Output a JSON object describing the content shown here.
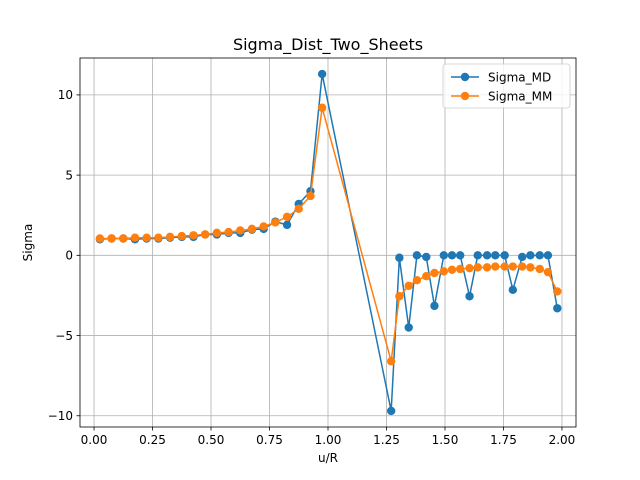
{
  "chart_data": {
    "type": "line",
    "title": "Sigma_Dist_Two_Sheets",
    "xlabel": "u/R",
    "ylabel": "Sigma",
    "xlim": [
      -0.06,
      2.06
    ],
    "ylim": [
      -10.7,
      12.3
    ],
    "xticks": [
      0.0,
      0.25,
      0.5,
      0.75,
      1.0,
      1.25,
      1.5,
      1.75,
      2.0
    ],
    "xtick_labels": [
      "0.00",
      "0.25",
      "0.50",
      "0.75",
      "1.00",
      "1.25",
      "1.50",
      "1.75",
      "2.00"
    ],
    "yticks": [
      -10,
      -5,
      0,
      5,
      10
    ],
    "ytick_labels": [
      "−10",
      "−5",
      "0",
      "5",
      "10"
    ],
    "grid": true,
    "legend_position": "top-right",
    "series": [
      {
        "name": "Sigma_MD",
        "color": "#1f77b4",
        "marker": "circle",
        "points": [
          [
            0.025,
            1.0
          ],
          [
            0.075,
            1.05
          ],
          [
            0.125,
            1.05
          ],
          [
            0.175,
            1.0
          ],
          [
            0.225,
            1.05
          ],
          [
            0.275,
            1.05
          ],
          [
            0.325,
            1.1
          ],
          [
            0.375,
            1.15
          ],
          [
            0.425,
            1.15
          ],
          [
            0.475,
            1.3
          ],
          [
            0.525,
            1.3
          ],
          [
            0.575,
            1.4
          ],
          [
            0.625,
            1.4
          ],
          [
            0.675,
            1.6
          ],
          [
            0.725,
            1.65
          ],
          [
            0.775,
            2.1
          ],
          [
            0.825,
            1.9
          ],
          [
            0.875,
            3.2
          ],
          [
            0.925,
            4.0
          ],
          [
            0.975,
            11.3
          ],
          [
            1.27,
            -9.7
          ],
          [
            1.305,
            -0.15
          ],
          [
            1.345,
            -4.5
          ],
          [
            1.38,
            0.0
          ],
          [
            1.42,
            -0.1
          ],
          [
            1.455,
            -3.15
          ],
          [
            1.495,
            0.0
          ],
          [
            1.53,
            0.0
          ],
          [
            1.565,
            0.0
          ],
          [
            1.605,
            -2.55
          ],
          [
            1.64,
            0.0
          ],
          [
            1.68,
            0.0
          ],
          [
            1.715,
            0.0
          ],
          [
            1.755,
            0.0
          ],
          [
            1.79,
            -2.15
          ],
          [
            1.83,
            -0.1
          ],
          [
            1.865,
            0.0
          ],
          [
            1.905,
            0.0
          ],
          [
            1.94,
            0.0
          ],
          [
            1.98,
            -3.3
          ]
        ]
      },
      {
        "name": "Sigma_MM",
        "color": "#ff7f0e",
        "marker": "circle",
        "points": [
          [
            0.025,
            1.05
          ],
          [
            0.075,
            1.05
          ],
          [
            0.125,
            1.05
          ],
          [
            0.175,
            1.1
          ],
          [
            0.225,
            1.1
          ],
          [
            0.275,
            1.1
          ],
          [
            0.325,
            1.15
          ],
          [
            0.375,
            1.2
          ],
          [
            0.425,
            1.25
          ],
          [
            0.475,
            1.3
          ],
          [
            0.525,
            1.4
          ],
          [
            0.575,
            1.45
          ],
          [
            0.625,
            1.55
          ],
          [
            0.675,
            1.65
          ],
          [
            0.725,
            1.8
          ],
          [
            0.775,
            2.05
          ],
          [
            0.825,
            2.4
          ],
          [
            0.875,
            2.9
          ],
          [
            0.925,
            3.7
          ],
          [
            0.975,
            9.2
          ],
          [
            1.27,
            -6.6
          ],
          [
            1.305,
            -2.55
          ],
          [
            1.345,
            -1.9
          ],
          [
            1.38,
            -1.55
          ],
          [
            1.42,
            -1.3
          ],
          [
            1.455,
            -1.1
          ],
          [
            1.495,
            -1.0
          ],
          [
            1.53,
            -0.9
          ],
          [
            1.565,
            -0.85
          ],
          [
            1.605,
            -0.8
          ],
          [
            1.64,
            -0.75
          ],
          [
            1.68,
            -0.75
          ],
          [
            1.715,
            -0.7
          ],
          [
            1.755,
            -0.7
          ],
          [
            1.79,
            -0.7
          ],
          [
            1.83,
            -0.7
          ],
          [
            1.865,
            -0.75
          ],
          [
            1.905,
            -0.85
          ],
          [
            1.94,
            -1.05
          ],
          [
            1.98,
            -2.25
          ]
        ]
      }
    ]
  }
}
